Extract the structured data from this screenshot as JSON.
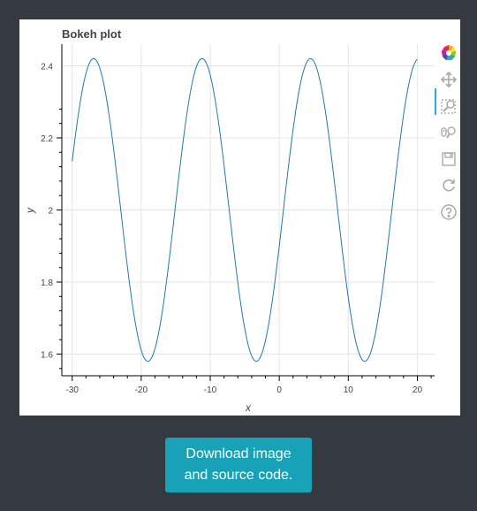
{
  "chart_data": {
    "type": "line",
    "title": "Bokeh plot",
    "xlabel": "x",
    "ylabel": "y",
    "xlim": [
      -31.5,
      22.5
    ],
    "ylim": [
      1.54,
      2.46
    ],
    "x_ticks": [
      -30,
      -20,
      -10,
      0,
      10,
      20
    ],
    "x_tick_labels": [
      "-30",
      "-20",
      "-10",
      "0",
      "10",
      "20"
    ],
    "y_ticks": [
      1.6,
      1.8,
      2.0,
      2.2,
      2.4
    ],
    "y_tick_labels": [
      "1.6",
      "1.8",
      "2",
      "2.2",
      "2.4"
    ],
    "grid": true,
    "series": [
      {
        "color": "#1f77b4",
        "x_range": [
          -30,
          20
        ],
        "function": "y = 2 + 0.42*sin(0.4*x - 0.24)"
      }
    ]
  },
  "toolbar": {
    "tools": [
      "bokeh-logo-icon",
      "pan-icon",
      "box-zoom-icon",
      "wheel-zoom-icon",
      "save-icon",
      "reset-icon",
      "help-icon"
    ]
  },
  "download": {
    "label_line1": "Download image",
    "label_line2": "and source code."
  }
}
